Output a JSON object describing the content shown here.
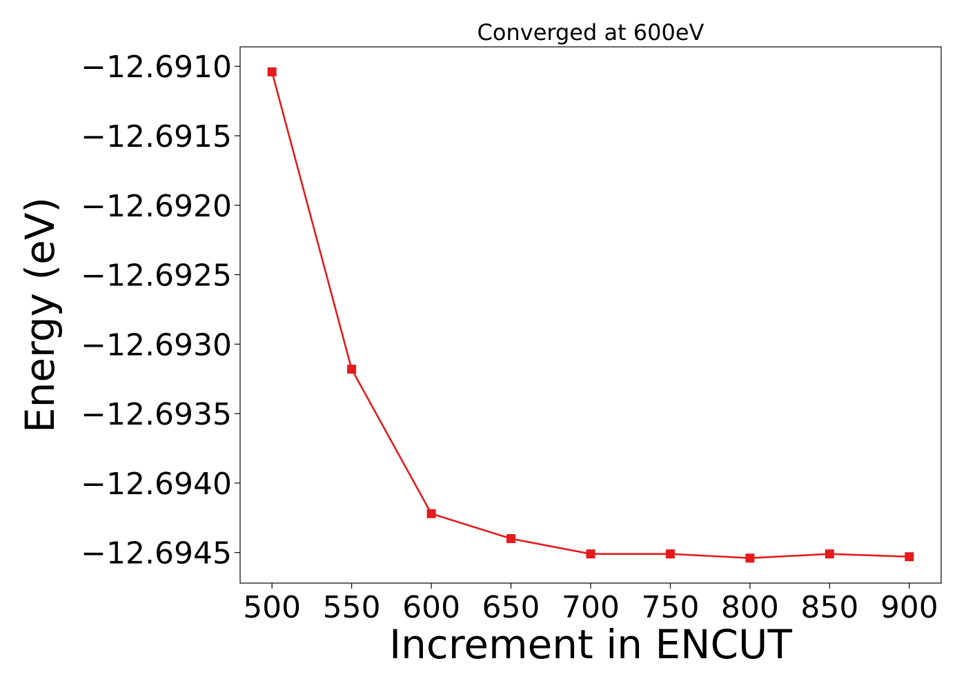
{
  "chart_data": {
    "type": "line",
    "title": "Converged at 600eV",
    "xlabel": "Increment in ENCUT",
    "ylabel": "Energy (eV)",
    "xlim": [
      480,
      920
    ],
    "ylim": [
      -12.69472,
      -12.69086
    ],
    "x_ticks": [
      500,
      550,
      600,
      650,
      700,
      750,
      800,
      850,
      900
    ],
    "x_tick_labels": [
      "500",
      "550",
      "600",
      "650",
      "700",
      "750",
      "800",
      "850",
      "900"
    ],
    "y_ticks": [
      -12.691,
      -12.6915,
      -12.692,
      -12.6925,
      -12.693,
      -12.6935,
      -12.694,
      -12.6945
    ],
    "y_tick_labels": [
      "−12.6910",
      "−12.6915",
      "−12.6920",
      "−12.6925",
      "−12.6930",
      "−12.6935",
      "−12.6940",
      "−12.6945"
    ],
    "grid": false,
    "series": [
      {
        "color": "#e41a1c",
        "marker": "square",
        "x": [
          500,
          550,
          600,
          650,
          700,
          750,
          800,
          850,
          900
        ],
        "y": [
          -12.69104,
          -12.69318,
          -12.69422,
          -12.6944,
          -12.69451,
          -12.69451,
          -12.69454,
          -12.69451,
          -12.69453
        ]
      }
    ]
  }
}
